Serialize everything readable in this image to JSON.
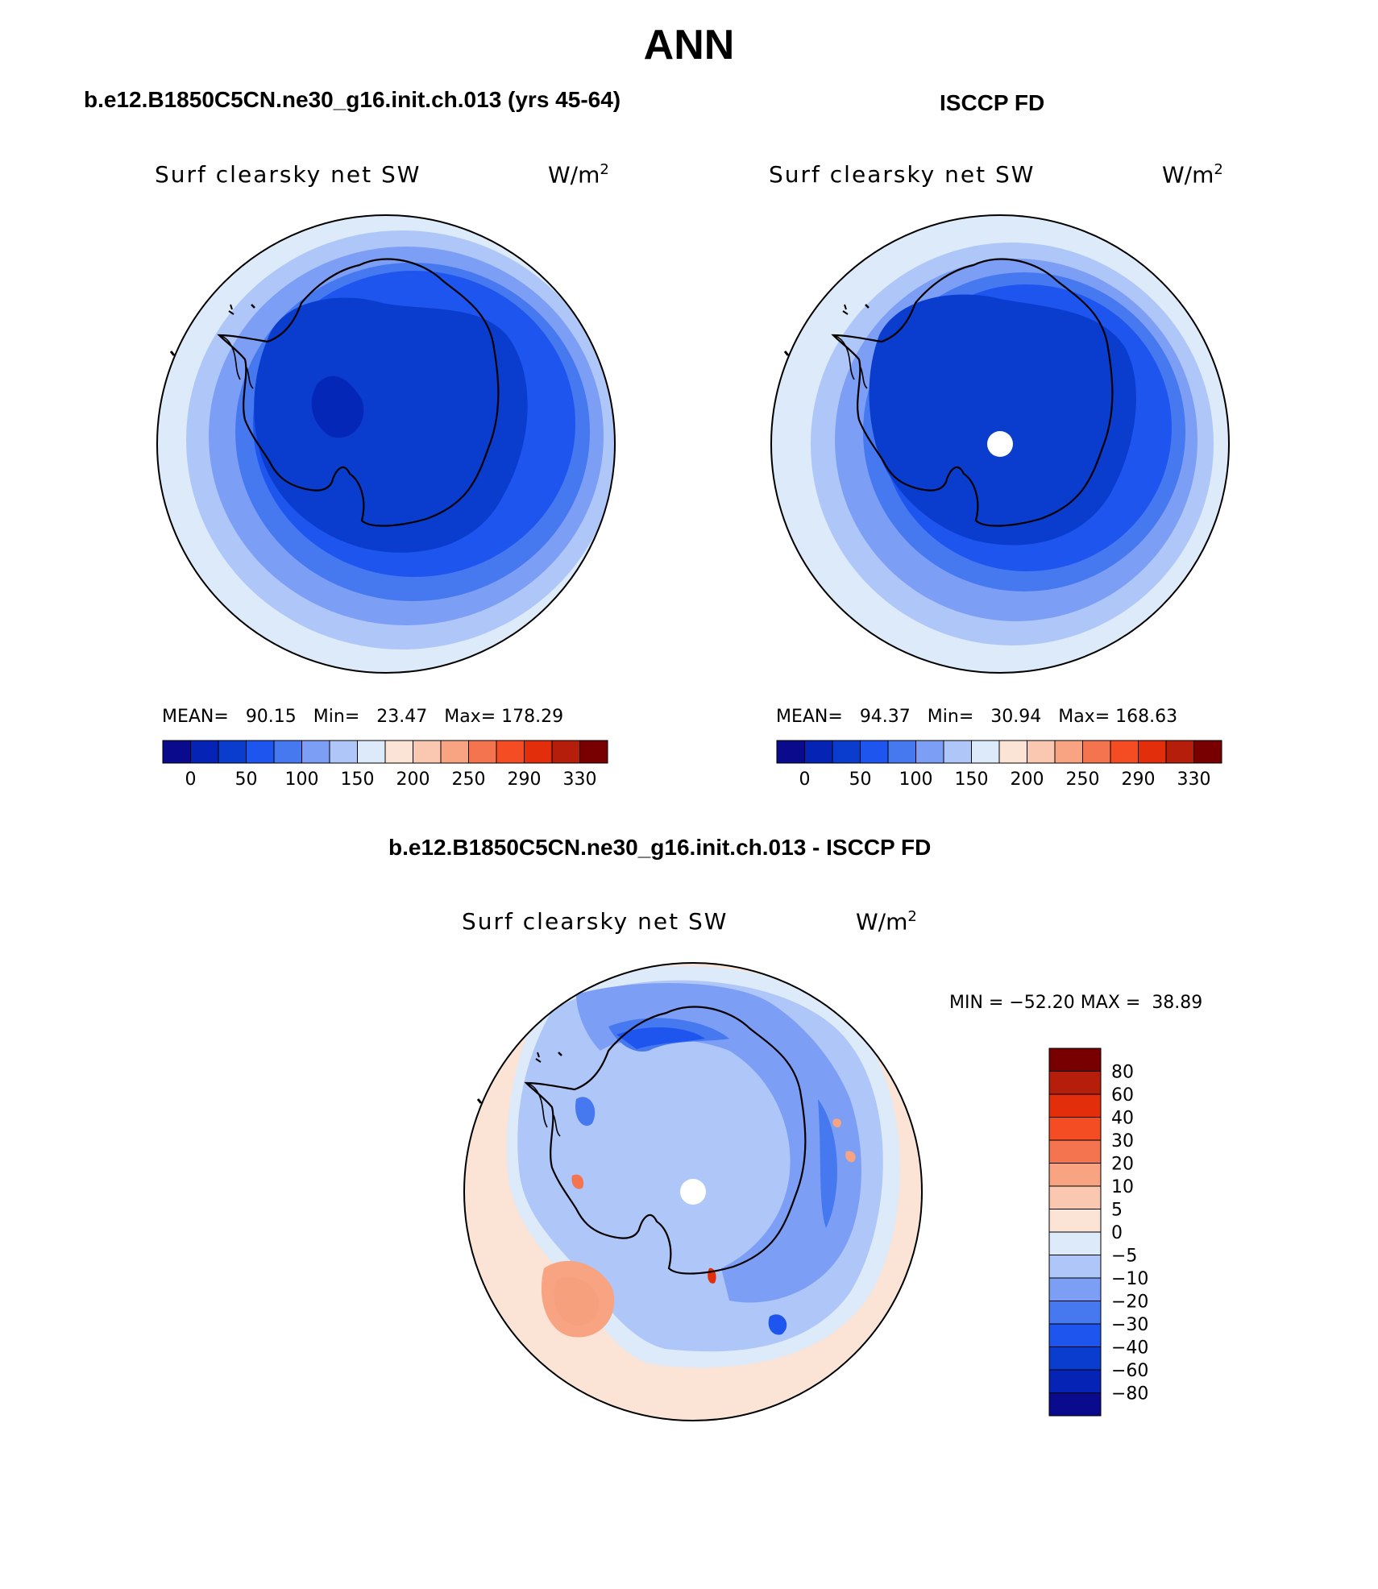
{
  "title": "ANN",
  "colors": {
    "model_scale": [
      "#0a0a8c",
      "#0523b4",
      "#0a3ccd",
      "#1e55ee",
      "#4678f0",
      "#7d9ef5",
      "#afc6f8",
      "#dceaf9",
      "#fbe3d6",
      "#fac8b0",
      "#f8a482",
      "#f47450",
      "#f44c23",
      "#e22e0a",
      "#b41e0a",
      "#780000"
    ],
    "diff_scale": [
      "#780000",
      "#b41e0a",
      "#e22e0a",
      "#f44c23",
      "#f47450",
      "#f8a482",
      "#fac8b0",
      "#fbe3d6",
      "#dceaf9",
      "#afc6f8",
      "#7d9ef5",
      "#4678f0",
      "#1e55ee",
      "#0a3ccd",
      "#0523b4",
      "#0a0a8c"
    ]
  },
  "panels": {
    "model": {
      "title": "b.e12.B1850C5CN.ne30_g16.init.ch.013 (yrs 45-64)",
      "variable": "Surf clearsky net SW",
      "units": "W/m",
      "units_sup": "2",
      "stats": {
        "mean_label": "MEAN=",
        "mean": "90.15",
        "min_label": "Min=",
        "min": "23.47",
        "max_label": "Max=",
        "max": "178.29"
      },
      "colorbar_ticks": [
        "0",
        "50",
        "100",
        "150",
        "200",
        "250",
        "290",
        "330"
      ]
    },
    "obs": {
      "title": "ISCCP FD",
      "variable": "Surf clearsky net SW",
      "units": "W/m",
      "units_sup": "2",
      "stats": {
        "mean_label": "MEAN=",
        "mean": "94.37",
        "min_label": "Min=",
        "min": "30.94",
        "max_label": "Max=",
        "max": "168.63"
      },
      "colorbar_ticks": [
        "0",
        "50",
        "100",
        "150",
        "200",
        "250",
        "290",
        "330"
      ]
    },
    "diff": {
      "title": "b.e12.B1850C5CN.ne30_g16.init.ch.013 - ISCCP FD",
      "variable": "Surf clearsky net SW",
      "units": "W/m",
      "units_sup": "2",
      "stats": {
        "min_label": "MIN =",
        "min": "−52.20",
        "max_label": "MAX =",
        "max": "38.89"
      },
      "colorbar_ticks": [
        "80",
        "60",
        "40",
        "30",
        "20",
        "10",
        "5",
        "0",
        "−5",
        "−10",
        "−20",
        "−30",
        "−40",
        "−60",
        "−80"
      ]
    }
  }
}
